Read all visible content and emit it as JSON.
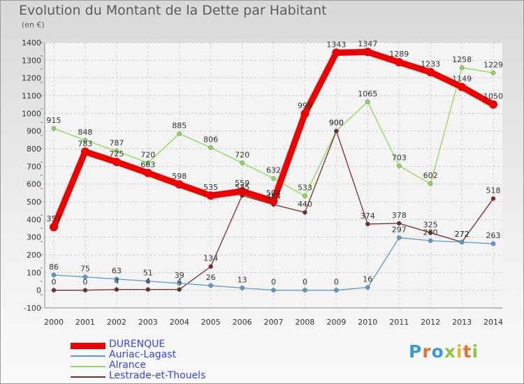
{
  "title": "Evolution du Montant de la Dette par Habitant",
  "unit": "(en €)",
  "logo": {
    "text": "Proxiti",
    "letter_colors": [
      "#3a9ad9",
      "#e8732a",
      "#3a9ad9",
      "#8cc63f",
      "#e8b52a",
      "#e8732a",
      "#8cc63f"
    ]
  },
  "chart_data": {
    "type": "line",
    "x": [
      "2000",
      "2001",
      "2002",
      "2003",
      "2004",
      "2005",
      "2006",
      "2007",
      "2008",
      "2009",
      "2010",
      "2011",
      "2012",
      "2013",
      "2014"
    ],
    "ylim": [
      -100,
      1400
    ],
    "yticks": [
      -100,
      0,
      100,
      200,
      300,
      400,
      500,
      600,
      700,
      800,
      900,
      1000,
      1100,
      1200,
      1300,
      1400
    ],
    "grid": true,
    "legend_position": "bottom-left",
    "series": [
      {
        "name": "DURENQUE",
        "color": "#ee0000",
        "values": [
          357,
          783,
          725,
          663,
          598,
          535,
          559,
          504,
          998,
          1343,
          1347,
          1289,
          1233,
          1149,
          1050
        ],
        "labels": [
          "357",
          "783",
          "725",
          "663",
          "598",
          "535",
          "559",
          "504",
          "998",
          "1343",
          "1347",
          "1289",
          "1233",
          "1149",
          "1050"
        ]
      },
      {
        "name": "Auriac-Lagast",
        "color": "#5b9bd5",
        "values": [
          86,
          75,
          63,
          51,
          39,
          26,
          13,
          0,
          0,
          0,
          16,
          297,
          280,
          272,
          263
        ],
        "labels": [
          "86",
          "75",
          "63",
          "51",
          "39",
          "26",
          "13",
          "0",
          "0",
          "0",
          "16",
          "297",
          "280",
          "272",
          "263"
        ]
      },
      {
        "name": "Alrance",
        "color": "#88dd55",
        "values": [
          915,
          848,
          787,
          720,
          885,
          806,
          720,
          632,
          533,
          900,
          1065,
          703,
          602,
          1258,
          1229
        ],
        "labels": [
          "915",
          "848",
          "787",
          "720",
          "885",
          "806",
          "720",
          "632",
          "533",
          "900",
          "1065",
          "703",
          "602",
          "1258",
          "1229"
        ]
      },
      {
        "name": "Lestrade-et-Thouels",
        "color": "#7a2a2a",
        "values": [
          0,
          0,
          4,
          4,
          4,
          134,
          535,
          484,
          440,
          900,
          374,
          378,
          325,
          272,
          518
        ],
        "labels": [
          "0",
          "0",
          "4",
          "4",
          "4",
          "134",
          "535",
          "484",
          "440",
          "900",
          "374",
          "378",
          "325",
          "272",
          "518"
        ]
      }
    ]
  }
}
